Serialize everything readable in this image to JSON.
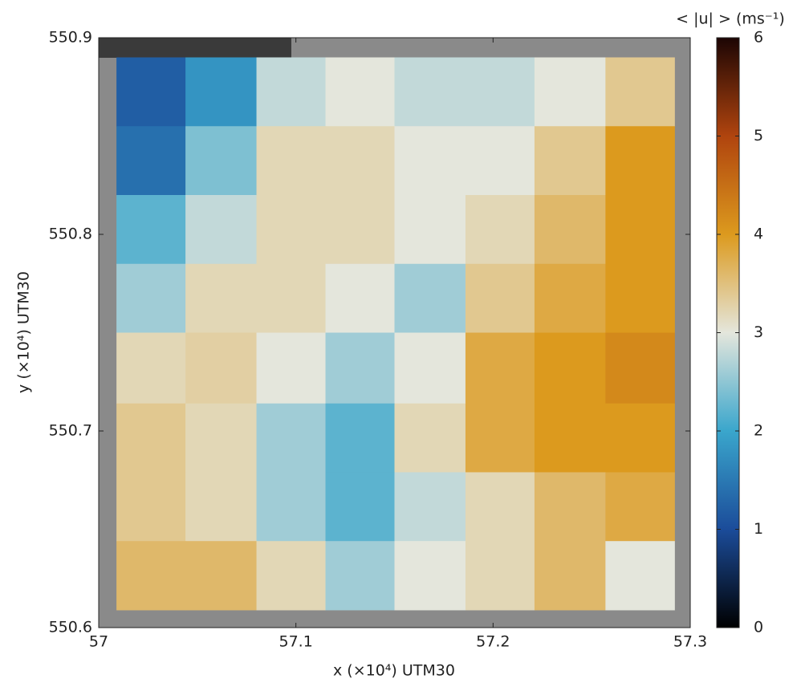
{
  "chart_data": {
    "type": "heatmap",
    "xlabel": "x (×10⁴) UTM30",
    "ylabel": "y (×10⁴) UTM30",
    "colorbar_label": "< |u| > (ms⁻¹)",
    "xlim": [
      57,
      57.3
    ],
    "xticks": [
      57,
      57.1,
      57.2,
      57.3
    ],
    "ylim": [
      550.6,
      550.9
    ],
    "yticks": [
      550.6,
      550.7,
      550.8,
      550.9
    ],
    "clim": [
      0,
      6
    ],
    "cticks": [
      0,
      1,
      2,
      3,
      4,
      5,
      6
    ],
    "colormap": [
      "#000000",
      "#1b4c9a",
      "#3aa6cc",
      "#e4e6dc",
      "#dc9a1e",
      "#b0440e",
      "#1c0504"
    ],
    "x_edges": [
      57.009,
      57.044,
      57.08,
      57.115,
      57.15,
      57.186,
      57.221,
      57.257,
      57.292
    ],
    "y_edges": [
      550.89,
      550.855,
      550.82,
      550.785,
      550.75,
      550.714,
      550.679,
      550.644,
      550.609
    ],
    "z": [
      [
        1.2,
        1.8,
        2.8,
        3.0,
        2.8,
        2.8,
        3.0,
        3.4
      ],
      [
        1.4,
        2.4,
        3.2,
        3.2,
        3.0,
        3.0,
        3.4,
        4.0
      ],
      [
        2.2,
        2.8,
        3.2,
        3.2,
        3.0,
        3.2,
        3.6,
        4.0
      ],
      [
        2.6,
        3.2,
        3.2,
        3.0,
        2.6,
        3.4,
        3.8,
        4.0
      ],
      [
        3.2,
        3.3,
        3.0,
        2.6,
        3.0,
        3.8,
        4.0,
        4.2
      ],
      [
        3.4,
        3.2,
        2.6,
        2.2,
        3.2,
        3.8,
        4.0,
        4.0
      ],
      [
        3.4,
        3.2,
        2.6,
        2.2,
        2.8,
        3.2,
        3.6,
        3.8
      ],
      [
        3.6,
        3.6,
        3.2,
        2.6,
        3.0,
        3.2,
        3.6,
        3.0
      ]
    ]
  }
}
